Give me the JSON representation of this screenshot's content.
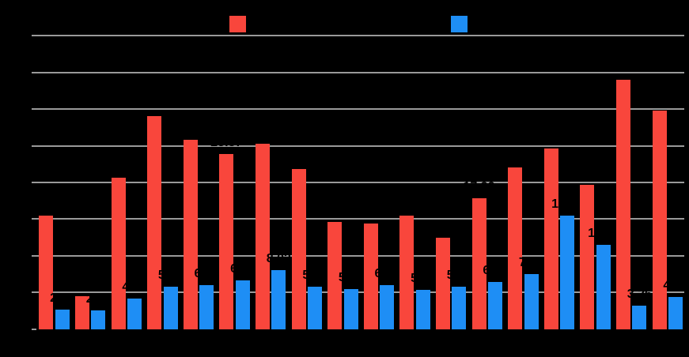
{
  "chart": {
    "background_color": "#000000",
    "gridline_color": "#999999",
    "annotation_text_color": "#000000",
    "title_text_color": "#000000",
    "legend": [
      {
        "name": "",
        "color": "#f9463c"
      },
      {
        "name": "",
        "color": "#1e8ef5"
      }
    ]
  },
  "chart_data": {
    "type": "bar",
    "title": "",
    "xlabel": "",
    "ylabel": "",
    "ylim": [
      0,
      40
    ],
    "gridline_step": 5,
    "grid": true,
    "legend_position": "top",
    "categories": [
      "",
      "",
      "",
      "",
      "",
      "",
      "",
      "",
      "",
      "",
      "",
      "",
      "",
      "",
      "",
      "",
      "",
      ""
    ],
    "series": [
      {
        "name": "",
        "color": "#f9463c",
        "values": [
          15.52,
          4.52,
          20.64,
          29.04,
          25.81,
          23.87,
          25.23,
          21.86,
          14.64,
          14.46,
          15.43,
          12.49,
          17.9,
          22.07,
          24.66,
          19.65,
          34.02,
          29.82
        ],
        "labels": [
          "15.52",
          "4.52",
          "20.64",
          "29.04",
          "25.81",
          "23.87",
          "25.23",
          "21.86",
          "14.64",
          "14.46",
          "15.43",
          "12.49",
          "17.90",
          "22.07",
          "24.66",
          "19.65",
          "34.02",
          "29.82"
        ]
      },
      {
        "name": "",
        "color": "#1e8ef5",
        "values": [
          2.68,
          2.55,
          4.23,
          5.76,
          6.04,
          6.67,
          8.02,
          5.74,
          5.49,
          6.01,
          5.38,
          5.81,
          6.45,
          7.47,
          15.46,
          11.47,
          3.26,
          4.41
        ],
        "labels": [
          "2.68",
          "2.55",
          "4.23",
          "5.76",
          "6.04",
          "6.67",
          "8.02",
          "5.74",
          "5.49",
          "6.01",
          "5.38",
          "5.81",
          "6.45",
          "7.47",
          "15.46",
          "11.47",
          "3.26",
          "4.41"
        ]
      }
    ]
  }
}
